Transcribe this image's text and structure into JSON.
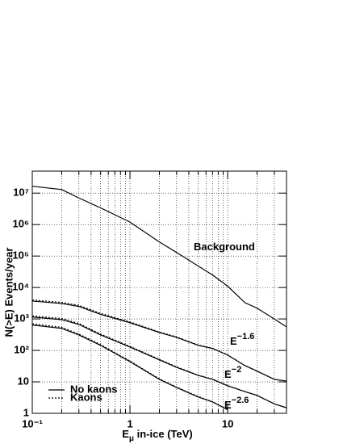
{
  "chart_data": {
    "type": "line",
    "xlabel": [
      "E",
      "μ",
      " in-ice (TeV)"
    ],
    "ylabel": "N(>E) Events/year",
    "xlog": true,
    "ylog": true,
    "grid": true,
    "xlim": [
      0.1,
      40
    ],
    "ylim": [
      1,
      50000000
    ],
    "xticks": [
      {
        "value": 0.1,
        "label": "10⁻¹"
      },
      1,
      10
    ],
    "xminor": [
      0.2,
      0.3,
      0.4,
      0.5,
      0.6,
      0.7,
      0.8,
      0.9,
      2,
      3,
      4,
      5,
      6,
      7,
      8,
      9,
      20,
      30
    ],
    "yticks": [
      1,
      10,
      {
        "value": 100,
        "label": "10²"
      },
      {
        "value": 1000,
        "label": "10³"
      },
      {
        "value": 10000,
        "label": "10⁴"
      },
      {
        "value": 100000,
        "label": "10⁵"
      },
      {
        "value": 1000000,
        "label": "10⁶"
      },
      {
        "value": 10000000,
        "label": "10⁷"
      }
    ],
    "legend": [
      {
        "name": "No kaons",
        "dash": "solid"
      },
      {
        "name": "Kaons",
        "dash": "dotted"
      }
    ],
    "x": [
      0.1,
      0.2,
      0.3,
      0.5,
      1,
      2,
      3,
      5,
      7,
      10,
      15,
      20,
      30,
      40
    ],
    "series": [
      {
        "label": "Background",
        "dash": "solid",
        "color": "#000",
        "values": [
          16600000,
          13000000,
          7000000,
          3400000,
          1200000,
          280000,
          130000,
          48000,
          25000,
          11000,
          3300,
          2200,
          1000,
          560
        ]
      },
      {
        "label": "E",
        "label_sup": "−1.6",
        "dash": "solid",
        "color": "#000",
        "values": [
          3700,
          3100,
          2500,
          1400,
          760,
          370,
          260,
          145,
          115,
          71,
          33,
          22,
          12,
          10.6
        ]
      },
      {
        "dash": "dotted",
        "color": "#000",
        "values": [
          4000,
          3350,
          2700,
          1500,
          800,
          385,
          268,
          148,
          117,
          72,
          33,
          22,
          12,
          10.6
        ]
      },
      {
        "label": "E",
        "label_sup": "−2",
        "dash": "solid",
        "color": "#000",
        "values": [
          1150,
          950,
          670,
          310,
          128,
          50,
          29,
          16,
          12,
          7.5,
          4.9,
          3.7,
          2,
          1.5
        ]
      },
      {
        "dash": "dotted",
        "color": "#000",
        "values": [
          1250,
          1030,
          720,
          330,
          134,
          52,
          30,
          16.3,
          12.2,
          7.6,
          4.9,
          3.7,
          2,
          1.5
        ]
      },
      {
        "label": "E",
        "label_sup": "−2.6",
        "dash": "solid",
        "color": "#000",
        "values": [
          640,
          500,
          310,
          145,
          44,
          12,
          6.6,
          3.3,
          2.3,
          1.3,
          null,
          null,
          null,
          null
        ]
      },
      {
        "dash": "dotted",
        "color": "#000",
        "values": [
          700,
          540,
          330,
          152,
          46,
          12.4,
          6.8,
          3.4,
          2.35,
          1.3,
          null,
          null,
          null,
          null
        ]
      }
    ]
  }
}
